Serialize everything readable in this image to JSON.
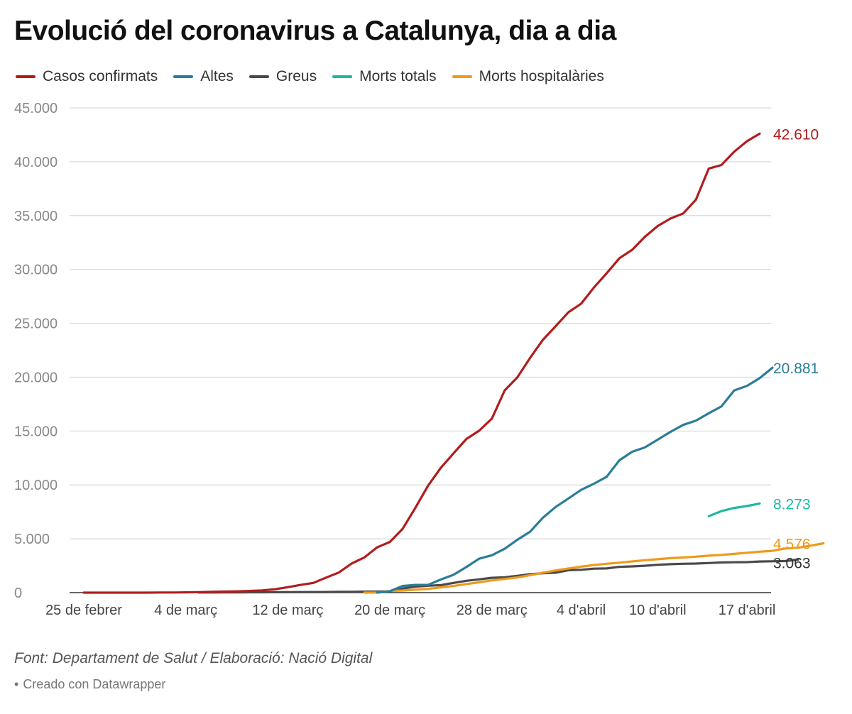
{
  "chart_data": {
    "type": "line",
    "title": "Evolució del coronavirus a Catalunya, dia a dia",
    "xlabel": "",
    "ylabel": "",
    "ylim": [
      0,
      45000
    ],
    "yticks": [
      0,
      5000,
      10000,
      15000,
      20000,
      25000,
      30000,
      35000,
      40000,
      45000
    ],
    "ytick_labels": [
      "0",
      "5.000",
      "10.000",
      "15.000",
      "20.000",
      "25.000",
      "30.000",
      "35.000",
      "40.000",
      "45.000"
    ],
    "xtick_labels": [
      {
        "label": "25 de febrer",
        "day": 0
      },
      {
        "label": "4 de març",
        "day": 8
      },
      {
        "label": "12 de març",
        "day": 16
      },
      {
        "label": "20 de març",
        "day": 24
      },
      {
        "label": "28 de març",
        "day": 32
      },
      {
        "label": "4 d'abril",
        "day": 39
      },
      {
        "label": "10 d'abril",
        "day": 45
      },
      {
        "label": "17 d'abril",
        "day": 52
      }
    ],
    "x_range_days": [
      0,
      55
    ],
    "grid": true,
    "legend_position": "top",
    "series": [
      {
        "name": "Casos confirmats",
        "color": "#b01d1d",
        "start_day": 0,
        "end_label": "42.610",
        "values": [
          0,
          0,
          1,
          1,
          2,
          3,
          12,
          15,
          24,
          49,
          75,
          101,
          121,
          156,
          212,
          316,
          509,
          715,
          903,
          1394,
          1866,
          2702,
          3270,
          4203,
          4704,
          5925,
          7864,
          9937,
          11592,
          12940,
          14263,
          15026,
          16157,
          18773,
          19991,
          21804,
          23460,
          24734,
          26032,
          26824,
          28323,
          29647,
          31043,
          31824,
          33036,
          34027,
          34726,
          35197,
          36483,
          39358,
          39697,
          40936,
          41901,
          42610
        ]
      },
      {
        "name": "Altes",
        "color": "#2a7d98",
        "start_day": 23,
        "end_label": "20.881",
        "values": [
          0,
          130,
          620,
          720,
          720,
          1220,
          1660,
          2380,
          3150,
          3470,
          4070,
          4910,
          5660,
          6950,
          7950,
          8740,
          9540,
          10110,
          10760,
          12290,
          13080,
          13480,
          14200,
          14920,
          15570,
          15970,
          16650,
          17290,
          18770,
          19190,
          19920,
          20881
        ]
      },
      {
        "name": "Greus",
        "color": "#4a4a4a",
        "start_day": 9,
        "end_label": "3.063",
        "values": [
          10,
          15,
          20,
          25,
          30,
          35,
          40,
          45,
          50,
          55,
          60,
          70,
          80,
          90,
          100,
          120,
          380,
          560,
          640,
          700,
          900,
          1100,
          1230,
          1380,
          1420,
          1560,
          1710,
          1800,
          1850,
          2080,
          2120,
          2230,
          2250,
          2390,
          2440,
          2500,
          2580,
          2640,
          2680,
          2700,
          2750,
          2800,
          2820,
          2830,
          2890,
          2910,
          2930,
          3063
        ]
      },
      {
        "name": "Morts totals",
        "color": "#1fb8a3",
        "start_day": 49,
        "end_label": "8.273",
        "values": [
          7097,
          7570,
          7860,
          8040,
          8273
        ]
      },
      {
        "name": "Morts hospitalàries",
        "color": "#ef9a1a",
        "start_day": 22,
        "end_label": "4.576",
        "values": [
          0,
          10,
          150,
          200,
          280,
          350,
          490,
          620,
          800,
          960,
          1140,
          1270,
          1410,
          1620,
          1850,
          2060,
          2250,
          2420,
          2560,
          2680,
          2780,
          2900,
          3010,
          3100,
          3200,
          3260,
          3340,
          3430,
          3500,
          3600,
          3700,
          3800,
          3880,
          4100,
          4170,
          4360,
          4576
        ]
      }
    ]
  },
  "source_text": "Font: Departament de Salut / Elaboració: Nació Digital",
  "credit": {
    "bullet": "•",
    "text": "Creado con Datawrapper"
  }
}
